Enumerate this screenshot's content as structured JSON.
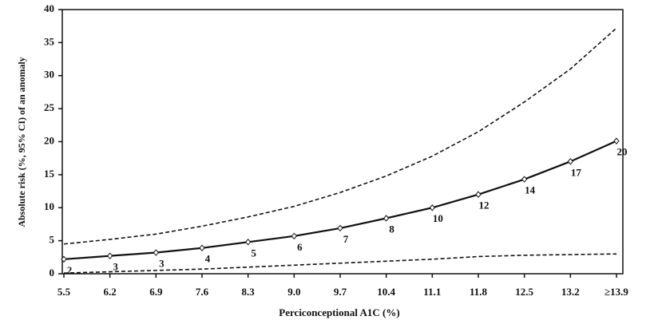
{
  "chart_data": {
    "type": "line",
    "x_label": "Perciconceptional A1C (%)",
    "y_label": "Absolute risk (%, 95% CI) of an anomaly",
    "categories": [
      "5.5",
      "6.2",
      "6.9",
      "7.6",
      "8.3",
      "9.0",
      "9.7",
      "10.4",
      "11.1",
      "11.8",
      "12.5",
      "13.2",
      "≥13.9"
    ],
    "series": [
      {
        "color": "#111111",
        "line_style": "solid",
        "marker": "diamond",
        "values": [
          2.2,
          2.7,
          3.2,
          3.9,
          4.8,
          5.7,
          6.9,
          8.4,
          10.0,
          12.0,
          14.3,
          17.0,
          20.1
        ],
        "value_labels": [
          "2",
          "3",
          "3",
          "4",
          "5",
          "6",
          "7",
          "8",
          "10",
          "12",
          "14",
          "17",
          "20"
        ]
      },
      {
        "color": "#111111",
        "line_style": "dashed",
        "values": [
          4.5,
          5.2,
          6.0,
          7.2,
          8.6,
          10.2,
          12.3,
          14.8,
          17.8,
          21.5,
          26.0,
          31.0,
          37.2
        ]
      },
      {
        "color": "#111111",
        "line_style": "dashed",
        "values": [
          0.1,
          0.3,
          0.5,
          0.7,
          1.0,
          1.3,
          1.6,
          1.9,
          2.2,
          2.6,
          2.8,
          2.9,
          3.0
        ]
      }
    ],
    "ylim": [
      0,
      40
    ],
    "yticks": [
      0,
      5,
      10,
      15,
      20,
      25,
      30,
      35,
      40
    ],
    "grid": false
  }
}
